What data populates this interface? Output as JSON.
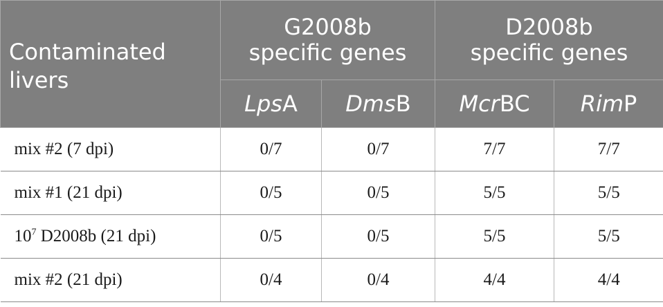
{
  "table": {
    "corner_header": [
      "Contaminated",
      "livers"
    ],
    "groups": [
      {
        "lines": [
          "G2008b",
          "specific genes"
        ]
      },
      {
        "lines": [
          "D2008b",
          "specific genes"
        ]
      }
    ],
    "genes": [
      {
        "italic": "Lps",
        "plain": "A"
      },
      {
        "italic": "Dms",
        "plain": "B"
      },
      {
        "italic": "Mcr",
        "plain": "BC"
      },
      {
        "italic": "Rim",
        "plain": "P"
      }
    ],
    "rows": [
      {
        "label": "mix #2 (7 dpi)",
        "values": [
          "0/7",
          "0/7",
          "7/7",
          "7/7"
        ]
      },
      {
        "label": "mix #1 (21 dpi)",
        "values": [
          "0/5",
          "0/5",
          "5/5",
          "5/5"
        ]
      },
      {
        "label_base": "10",
        "label_sup": "7",
        "label_rest": " D2008b (21 dpi)",
        "values": [
          "0/5",
          "0/5",
          "5/5",
          "5/5"
        ]
      },
      {
        "label": "mix #2 (21 dpi)",
        "values": [
          "0/4",
          "0/4",
          "4/4",
          "4/4"
        ]
      }
    ]
  },
  "colors": {
    "header_bg": "#7f7f7f",
    "header_text": "#ffffff",
    "row_divider": "#8a8a8a"
  }
}
